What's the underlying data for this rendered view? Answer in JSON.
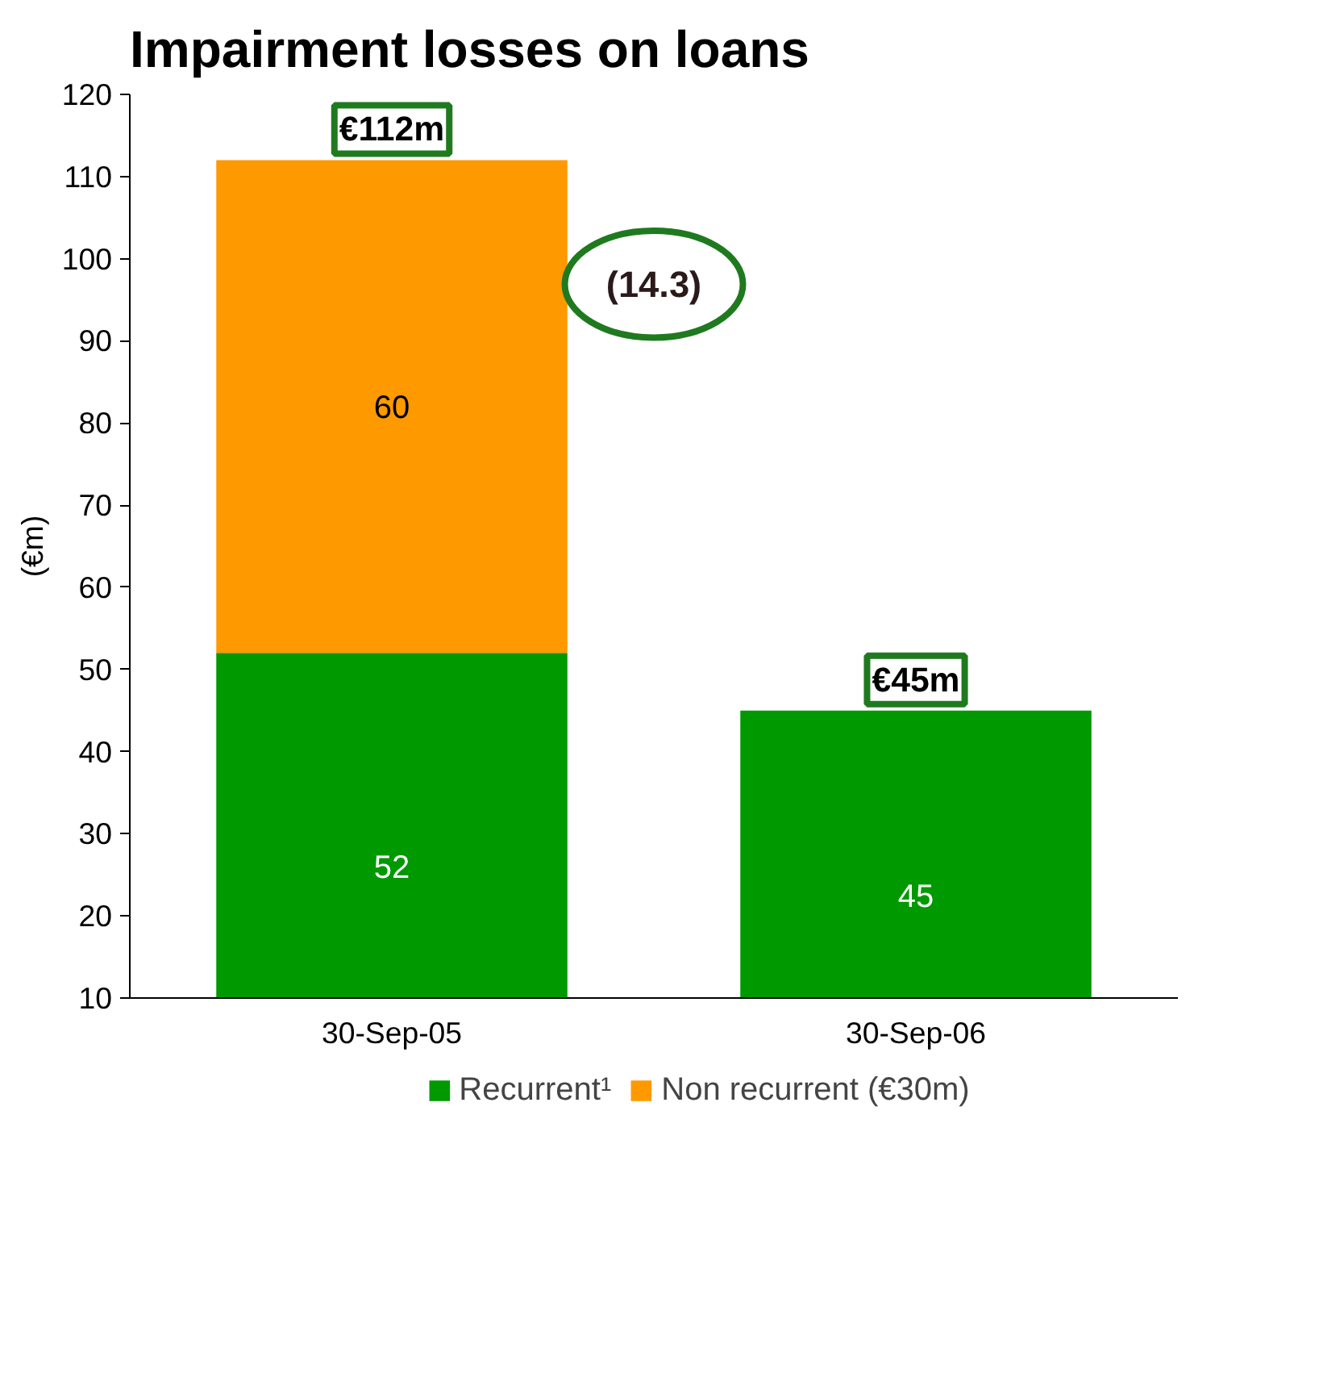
{
  "chart_data": {
    "type": "bar",
    "title": "Impairment losses on loans",
    "ylabel": "(€m)",
    "categories": [
      "30-Sep-05",
      "30-Sep-06"
    ],
    "stacked": true,
    "series": [
      {
        "name": "Recurrent¹",
        "color": "#009900",
        "values": [
          52,
          45
        ]
      },
      {
        "name": "Non recurrent (€30m)",
        "color": "#ff9900",
        "values": [
          60,
          null
        ]
      }
    ],
    "ylim": [
      10,
      120
    ],
    "yticks": [
      10,
      20,
      30,
      40,
      50,
      60,
      70,
      80,
      90,
      100,
      110,
      120
    ],
    "data_labels": true,
    "totals": [
      "€112m",
      "€45m"
    ],
    "annotations": [
      "(14.3)"
    ],
    "legend": "bottom",
    "grid": false
  }
}
